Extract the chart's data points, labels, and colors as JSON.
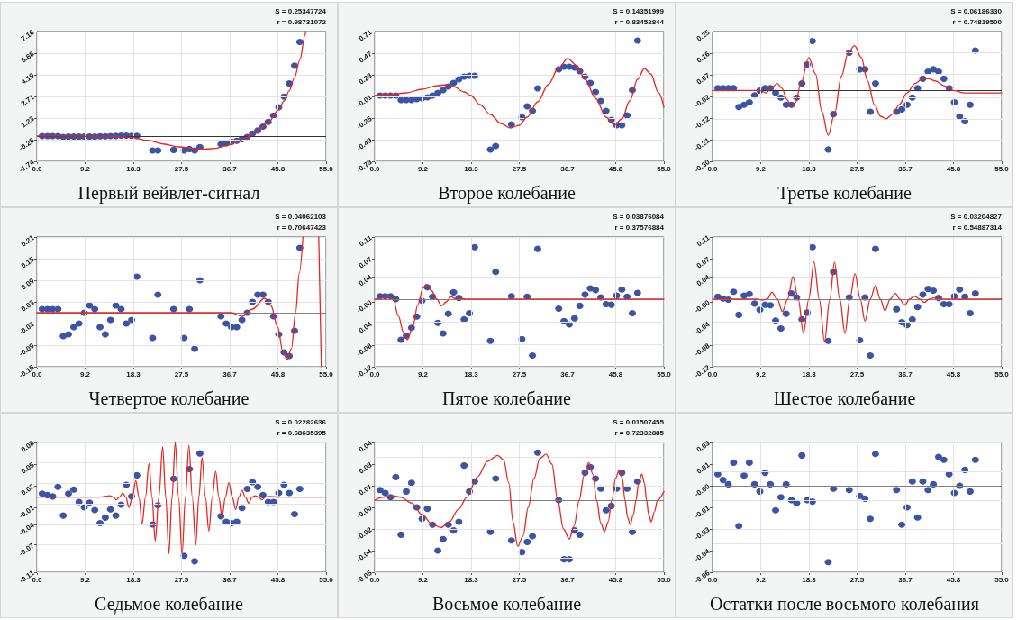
{
  "chart_data": [
    {
      "type": "scatter",
      "title": "Первый вейвлет-сигнал",
      "annotations": [
        "S = 0.25347724",
        "r = 0.98731072"
      ],
      "marker": "circle",
      "grid": true,
      "xlim": [
        0,
        55
      ],
      "xticks": [
        {
          "value": 0,
          "label": "0.0"
        },
        {
          "value": 9.1667,
          "label": "9.2"
        },
        {
          "value": 18.3333,
          "label": "18.3"
        },
        {
          "value": 27.5,
          "label": "27.5"
        },
        {
          "value": 36.6667,
          "label": "36.7"
        },
        {
          "value": 45.8333,
          "label": "45.8"
        },
        {
          "value": 55,
          "label": "55.0"
        }
      ],
      "ylim": [
        -1.74,
        7.16
      ],
      "yticks": [
        -1.74,
        {
          "value": -0.2567,
          "label": "-0.26"
        },
        {
          "value": 1.2267,
          "label": "1.23"
        },
        2.71,
        {
          "value": 4.1933,
          "label": "4.19"
        },
        {
          "value": 5.6767,
          "label": "5.68"
        },
        7.16
      ],
      "ref_lines": [
        {
          "axis": "y",
          "value": 0,
          "color": "#333333"
        }
      ],
      "series": [
        {
          "color": "#3b54a5",
          "x": [
            1,
            2,
            3,
            4,
            5,
            6,
            7,
            8,
            9,
            10,
            11,
            12,
            13,
            14,
            15,
            16,
            17,
            18,
            19,
            22,
            23,
            26,
            28,
            29,
            30,
            31,
            35,
            36,
            37,
            38,
            39,
            40,
            41,
            42,
            43,
            44,
            45,
            46,
            47,
            48,
            49,
            50
          ],
          "values": [
            -0.01,
            -0.01,
            -0.01,
            -0.01,
            -0.07,
            -0.05,
            -0.05,
            -0.05,
            -0.05,
            -0.05,
            -0.05,
            -0.03,
            -0.02,
            -0.01,
            0.0,
            0.02,
            0.02,
            0.01,
            0.0,
            -1.0,
            -1.0,
            -0.96,
            -1.0,
            -0.9,
            -1.0,
            -0.77,
            -0.56,
            -0.5,
            -0.41,
            -0.33,
            -0.22,
            -0.07,
            0.16,
            0.37,
            0.64,
            0.96,
            1.4,
            1.97,
            2.69,
            3.6,
            4.82,
            6.45
          ]
        },
        {
          "type": "line",
          "marker": "none",
          "color": "#e8251f",
          "x": [
            0,
            15,
            18,
            21,
            24,
            27,
            30,
            32,
            34,
            36,
            38,
            40,
            42,
            44,
            46,
            47,
            48,
            49,
            50,
            51,
            51.1
          ],
          "values": [
            0,
            -0.03,
            -0.1,
            -0.3,
            -0.55,
            -0.75,
            -0.87,
            -0.9,
            -0.85,
            -0.68,
            -0.4,
            -0.08,
            0.35,
            0.95,
            1.8,
            2.4,
            3.1,
            4.0,
            5.2,
            6.9,
            7.16
          ]
        }
      ]
    },
    {
      "type": "scatter",
      "title": "Второе колебание",
      "annotations": [
        "S = 0.14351999",
        "r = 0.83452844"
      ],
      "marker": "circle",
      "grid": true,
      "xlim": [
        0,
        55
      ],
      "xticks": [
        {
          "value": 0,
          "label": "0.0"
        },
        {
          "value": 9.1667,
          "label": "9.2"
        },
        {
          "value": 18.3333,
          "label": "18.3"
        },
        {
          "value": 27.5,
          "label": "27.5"
        },
        {
          "value": 36.6667,
          "label": "36.7"
        },
        {
          "value": 45.8333,
          "label": "45.8"
        },
        {
          "value": 55,
          "label": "55.0"
        }
      ],
      "ylim": [
        -0.73,
        0.71
      ],
      "yticks": [
        -0.73,
        -0.49,
        -0.25,
        -0.01,
        0.23,
        0.47,
        0.71
      ],
      "ref_lines": [
        {
          "axis": "y",
          "value": 0,
          "color": "#333333"
        }
      ],
      "series": [
        {
          "color": "#3b54a5",
          "x": [
            1,
            2,
            3,
            4,
            5,
            6,
            7,
            8,
            9,
            10,
            11,
            12,
            13,
            14,
            15,
            16,
            17,
            18,
            19,
            22,
            23,
            26,
            28,
            29,
            30,
            31,
            35,
            36,
            37,
            38,
            39,
            40,
            41,
            42,
            43,
            44,
            45,
            46,
            47,
            48,
            49,
            50
          ],
          "values": [
            0.0,
            0.0,
            0.0,
            0.0,
            -0.05,
            -0.05,
            -0.05,
            -0.04,
            -0.03,
            -0.02,
            0.0,
            0.03,
            0.06,
            0.1,
            0.14,
            0.18,
            0.21,
            0.22,
            0.22,
            -0.6,
            -0.56,
            -0.32,
            -0.24,
            -0.12,
            -0.17,
            0.08,
            0.29,
            0.32,
            0.32,
            0.31,
            0.27,
            0.21,
            0.14,
            0.04,
            -0.06,
            -0.17,
            -0.27,
            -0.33,
            -0.33,
            -0.22,
            0.06,
            0.61
          ]
        },
        {
          "type": "line",
          "marker": "none",
          "color": "#e8251f",
          "x": [
            0,
            3,
            6,
            9,
            12,
            13.5,
            15,
            17,
            18.3,
            20,
            22,
            24,
            25.8,
            27.5,
            29,
            31,
            33,
            35,
            36.7,
            38.5,
            40,
            42,
            44,
            45.6,
            47,
            48.5,
            50,
            51.3,
            52.5,
            54,
            55
          ],
          "values": [
            0,
            0.01,
            0.03,
            0.07,
            0.11,
            0.12,
            0.1,
            0.04,
            0.0,
            -0.1,
            -0.21,
            -0.31,
            -0.36,
            -0.33,
            -0.24,
            -0.07,
            0.12,
            0.31,
            0.41,
            0.33,
            0.18,
            -0.03,
            -0.24,
            -0.33,
            -0.26,
            -0.06,
            0.18,
            0.3,
            0.24,
            0.03,
            -0.13
          ]
        }
      ]
    },
    {
      "type": "scatter",
      "title": "Третье колебание",
      "annotations": [
        "S = 0.06186330",
        "r = 0.74819500"
      ],
      "marker": "circle",
      "grid": true,
      "xlim": [
        0,
        55
      ],
      "xticks": [
        {
          "value": 0,
          "label": "0.0"
        },
        {
          "value": 9.1667,
          "label": "9.2"
        },
        {
          "value": 18.3333,
          "label": "18.3"
        },
        {
          "value": 27.5,
          "label": "27.5"
        },
        {
          "value": 36.6667,
          "label": "36.7"
        },
        {
          "value": 45.8333,
          "label": "45.8"
        },
        {
          "value": 55,
          "label": "55.0"
        }
      ],
      "ylim": [
        -0.3,
        0.25
      ],
      "yticks": [
        {
          "value": -0.3,
          "label": "-0.30"
        },
        {
          "value": -0.2083,
          "label": "-0.21"
        },
        {
          "value": -0.1167,
          "label": "-0.12"
        },
        {
          "value": -0.025,
          "label": "-0.02"
        },
        {
          "value": 0.0667,
          "label": "0.07"
        },
        {
          "value": 0.1583,
          "label": "0.16"
        },
        0.25
      ],
      "ref_lines": [
        {
          "axis": "y",
          "value": 0,
          "color": "#333333"
        }
      ],
      "series": [
        {
          "color": "#3b54a5",
          "x": [
            1,
            2,
            3,
            4,
            5,
            6,
            7,
            8,
            9,
            10,
            11,
            12,
            13,
            14,
            15,
            16,
            17,
            18,
            19,
            22,
            23,
            26,
            28,
            29,
            30,
            31,
            35,
            36,
            37,
            38,
            39,
            40,
            41,
            42,
            43,
            44,
            45,
            46,
            47,
            48,
            49,
            50
          ],
          "values": [
            0.01,
            0.01,
            0.01,
            0.01,
            -0.07,
            -0.06,
            -0.05,
            -0.02,
            0.0,
            0.01,
            0.01,
            -0.01,
            -0.03,
            -0.06,
            -0.06,
            -0.03,
            0.03,
            0.11,
            0.21,
            -0.25,
            -0.1,
            0.16,
            0.09,
            0.09,
            -0.09,
            0.03,
            -0.09,
            -0.08,
            -0.06,
            -0.03,
            0.01,
            0.05,
            0.08,
            0.09,
            0.08,
            0.05,
            0.01,
            -0.05,
            -0.11,
            -0.13,
            -0.06,
            0.17
          ]
        },
        {
          "type": "line",
          "marker": "none",
          "color": "#e8251f",
          "x": [
            0,
            6.5,
            8,
            9,
            10.2,
            11.2,
            12.3,
            13.2,
            14.2,
            15,
            15.8,
            16.8,
            18.3,
            19.6,
            20.8,
            22,
            23.2,
            24.5,
            25.8,
            27,
            28.3,
            29.5,
            30.8,
            32,
            33,
            34.3,
            35.5,
            37,
            38.5,
            40,
            41,
            42.5,
            44,
            45.8,
            48,
            52,
            55
          ],
          "values": [
            0,
            0,
            0,
            0,
            -0.01,
            0.01,
            0.03,
            0.01,
            -0.04,
            -0.07,
            -0.05,
            0.03,
            0.14,
            0.07,
            -0.09,
            -0.19,
            -0.1,
            0.06,
            0.16,
            0.19,
            0.14,
            0.04,
            -0.06,
            -0.11,
            -0.12,
            -0.1,
            -0.06,
            -0.01,
            0.03,
            0.05,
            0.05,
            0.04,
            0.02,
            0.0,
            -0.01,
            -0.01,
            -0.01
          ]
        }
      ]
    },
    {
      "type": "scatter",
      "title": "Четвертое колебание",
      "annotations": [
        "S = 0.04062103",
        "r = 0.70647423"
      ],
      "marker": "circle",
      "grid": true,
      "xlim": [
        0,
        55
      ],
      "xticks": [
        {
          "value": 0,
          "label": "0.0"
        },
        {
          "value": 9.1667,
          "label": "9.2"
        },
        {
          "value": 18.3333,
          "label": "18.3"
        },
        {
          "value": 27.5,
          "label": "27.5"
        },
        {
          "value": 36.6667,
          "label": "36.7"
        },
        {
          "value": 45.8333,
          "label": "45.8"
        },
        {
          "value": 55,
          "label": "55.0"
        }
      ],
      "ylim": [
        -0.15,
        0.21
      ],
      "yticks": [
        -0.15,
        -0.09,
        -0.03,
        0.03,
        0.09,
        0.15,
        0.21
      ],
      "ref_lines": [
        {
          "axis": "y",
          "value": 0,
          "color": "#808080"
        }
      ],
      "series": [
        {
          "color": "#3b54a5",
          "x": [
            1,
            2,
            3,
            4,
            5,
            6,
            7,
            8,
            9,
            10,
            11,
            12,
            13,
            14,
            15,
            16,
            17,
            18,
            19,
            22,
            23,
            26,
            28,
            29,
            30,
            31,
            35,
            36,
            37,
            38,
            39,
            40,
            41,
            42,
            43,
            44,
            45,
            46,
            47,
            48,
            49,
            50
          ],
          "values": [
            0.01,
            0.01,
            0.01,
            0.01,
            -0.065,
            -0.06,
            -0.04,
            -0.03,
            0.0,
            0.02,
            0.01,
            -0.04,
            -0.06,
            -0.02,
            0.02,
            0.01,
            -0.03,
            -0.02,
            0.1,
            -0.07,
            0.05,
            0.01,
            -0.07,
            0.01,
            -0.1,
            0.09,
            -0.01,
            -0.03,
            -0.04,
            -0.04,
            -0.02,
            0.0,
            0.03,
            0.05,
            0.05,
            0.03,
            -0.01,
            -0.06,
            -0.11,
            -0.12,
            -0.05,
            0.18
          ]
        },
        {
          "type": "line",
          "marker": "none",
          "color": "#e8251f",
          "x": [
            0,
            10,
            20,
            30,
            33,
            35,
            37,
            39,
            41,
            43.3,
            44.5,
            45.8,
            46.8,
            47.6,
            48.4,
            49.2,
            49.9,
            50.6,
            52,
            53.6,
            54.1
          ],
          "values": [
            0,
            0,
            0,
            0,
            0,
            0.0,
            0,
            -0.01,
            0.01,
            0.04,
            0.02,
            -0.04,
            -0.11,
            -0.13,
            -0.1,
            0.0,
            0.11,
            0.21,
            null,
            0.21,
            -0.15
          ]
        }
      ]
    },
    {
      "type": "scatter",
      "title": "Пятое колебание",
      "annotations": [
        "S = 0.03876084",
        "r = 0.37576884"
      ],
      "marker": "circle",
      "grid": true,
      "xlim": [
        0,
        55
      ],
      "xticks": [
        {
          "value": 0,
          "label": "0.0"
        },
        {
          "value": 9.1667,
          "label": "9.2"
        },
        {
          "value": 18.3333,
          "label": "18.3"
        },
        {
          "value": 27.5,
          "label": "27.5"
        },
        {
          "value": 36.6667,
          "label": "36.7"
        },
        {
          "value": 45.8333,
          "label": "45.8"
        },
        {
          "value": 55,
          "label": "55.0"
        }
      ],
      "ylim": [
        -0.12,
        0.11
      ],
      "yticks": [
        -0.12,
        {
          "value": -0.0817,
          "label": "-0.08"
        },
        {
          "value": -0.0433,
          "label": "-0.04"
        },
        {
          "value": -0.005,
          "label": "-0.00"
        },
        0.04,
        {
          "value": 0.0717,
          "label": "0.07"
        },
        0.11
      ],
      "ref_lines": [
        {
          "axis": "y",
          "value": 0,
          "color": "#808080"
        }
      ],
      "series": [
        {
          "color": "#3b54a5",
          "x": [
            1,
            2,
            3,
            4,
            5,
            6,
            7,
            8,
            9,
            10,
            11,
            12,
            13,
            14,
            15,
            16,
            17,
            18,
            19,
            22,
            23,
            26,
            28,
            29,
            30,
            31,
            35,
            36,
            37,
            38,
            39,
            40,
            41,
            42,
            43,
            44,
            45,
            46,
            47,
            48,
            49,
            50
          ],
          "values": [
            0.005,
            0.005,
            0.005,
            0.0,
            -0.072,
            -0.065,
            -0.051,
            -0.031,
            -0.003,
            0.021,
            0.004,
            -0.042,
            -0.061,
            -0.026,
            0.012,
            0.002,
            -0.036,
            -0.025,
            0.092,
            -0.074,
            0.048,
            0.005,
            -0.071,
            0.004,
            -0.1,
            0.089,
            -0.017,
            -0.039,
            -0.045,
            -0.034,
            -0.012,
            0.008,
            0.019,
            0.016,
            0.003,
            -0.009,
            -0.01,
            0.006,
            0.017,
            0.004,
            -0.025,
            0.011
          ]
        },
        {
          "type": "line",
          "marker": "none",
          "color": "#e8251f",
          "x": [
            0,
            1.5,
            2.5,
            3.5,
            4.5,
            5.5,
            6.2,
            7.2,
            8.2,
            9.2,
            9.8,
            10.8,
            11.8,
            12.7,
            13.6,
            14.5,
            15.5,
            16.5,
            17.5,
            20,
            30,
            40,
            55
          ],
          "values": [
            0,
            0.002,
            0.005,
            0.0,
            -0.03,
            -0.06,
            -0.072,
            -0.05,
            -0.01,
            0.02,
            0.026,
            0.015,
            0.0,
            -0.012,
            -0.005,
            0.004,
            0.0,
            0.001,
            0.0,
            0,
            0,
            0,
            0
          ]
        }
      ]
    },
    {
      "type": "scatter",
      "title": "Шестое колебание",
      "annotations": [
        "S = 0.03204827",
        "r = 0.54887314"
      ],
      "marker": "circle",
      "grid": true,
      "xlim": [
        0,
        55
      ],
      "xticks": [
        {
          "value": 0,
          "label": "0.0"
        },
        {
          "value": 9.1667,
          "label": "9.2"
        },
        {
          "value": 18.3333,
          "label": "18.3"
        },
        {
          "value": 27.5,
          "label": "27.5"
        },
        {
          "value": 36.6667,
          "label": "36.7"
        },
        {
          "value": 45.8333,
          "label": "45.8"
        },
        {
          "value": 55,
          "label": "55.0"
        }
      ],
      "ylim": [
        -0.12,
        0.11
      ],
      "yticks": [
        -0.12,
        {
          "value": -0.0817,
          "label": "-0.08"
        },
        {
          "value": -0.0433,
          "label": "-0.04"
        },
        {
          "value": -0.005,
          "label": "-0.00"
        },
        0.04,
        {
          "value": 0.0717,
          "label": "0.07"
        },
        0.11
      ],
      "ref_lines": [
        {
          "axis": "y",
          "value": 0,
          "color": "#808080"
        }
      ],
      "series": [
        {
          "color": "#3b54a5",
          "x": [
            1,
            2,
            3,
            4,
            5,
            6,
            7,
            8,
            9,
            10,
            11,
            12,
            13,
            14,
            15,
            16,
            17,
            18,
            19,
            22,
            23,
            26,
            28,
            29,
            30,
            31,
            35,
            36,
            37,
            38,
            39,
            40,
            41,
            42,
            43,
            44,
            45,
            46,
            47,
            48,
            49,
            50
          ],
          "values": [
            0.004,
            0.001,
            -0.001,
            0.013,
            -0.028,
            0.006,
            0.009,
            -0.008,
            -0.019,
            -0.01,
            -0.011,
            -0.038,
            -0.052,
            -0.026,
            0.01,
            0.003,
            -0.036,
            -0.024,
            0.092,
            -0.074,
            0.048,
            0.003,
            -0.073,
            0.003,
            -0.1,
            0.089,
            -0.018,
            -0.041,
            -0.046,
            -0.036,
            -0.014,
            0.008,
            0.018,
            0.015,
            0.002,
            -0.009,
            -0.009,
            0.005,
            0.017,
            0.004,
            -0.025,
            0.01
          ]
        },
        {
          "type": "line",
          "marker": "none",
          "color": "#e8251f",
          "x": [
            0,
            7,
            8.5,
            9.5,
            10.4,
            11.3,
            12.3,
            13.3,
            14.3,
            15.3,
            16.3,
            17.3,
            18.3,
            19.3,
            20.3,
            21.3,
            22.3,
            23.2,
            24.2,
            25.2,
            26.1,
            27.1,
            28.1,
            29,
            30,
            31,
            31.9,
            32.8,
            33.8,
            34.8,
            35.6,
            36.5,
            37.5,
            38.4,
            39.4,
            40.3,
            41.2,
            42,
            44,
            55
          ],
          "values": [
            0,
            0,
            0,
            -0.002,
            0.0,
            0.012,
            0.0,
            -0.022,
            0.0,
            0.04,
            0.0,
            -0.061,
            0.0,
            0.066,
            0.0,
            -0.075,
            0.0,
            0.065,
            0.0,
            -0.061,
            0.0,
            0.045,
            0.0,
            -0.039,
            0.0,
            0.024,
            0.0,
            -0.021,
            0.0,
            0.01,
            0.0,
            -0.011,
            0.0,
            0.005,
            0.0,
            -0.006,
            0.0,
            0.002,
            0,
            0
          ]
        }
      ]
    },
    {
      "type": "scatter",
      "title": "Седьмое колебание",
      "annotations": [
        "S = 0.02282636",
        "r = 0.68635395"
      ],
      "marker": "circle",
      "grid": true,
      "xlim": [
        0,
        55
      ],
      "xticks": [
        {
          "value": 0,
          "label": "0.0"
        },
        {
          "value": 9.1667,
          "label": "9.2"
        },
        {
          "value": 18.3333,
          "label": "18.3"
        },
        {
          "value": 27.5,
          "label": "27.5"
        },
        {
          "value": 36.6667,
          "label": "36.7"
        },
        {
          "value": 45.8333,
          "label": "45.8"
        },
        {
          "value": 55,
          "label": "55.0"
        }
      ],
      "ylim": [
        -0.11,
        0.08
      ],
      "yticks": [
        -0.11,
        -0.07,
        -0.04,
        {
          "value": -0.015,
          "label": "-0.01"
        },
        {
          "value": 0.0167,
          "label": "0.02"
        },
        {
          "value": 0.0483,
          "label": "0.05"
        },
        0.08
      ],
      "ref_lines": [
        {
          "axis": "y",
          "value": 0,
          "color": "#808080"
        }
      ],
      "series": [
        {
          "color": "#3b54a5",
          "x": [
            1,
            2,
            3,
            4,
            5,
            6,
            7,
            8,
            9,
            10,
            11,
            12,
            13,
            14,
            15,
            16,
            17,
            18,
            19,
            22,
            23,
            26,
            28,
            29,
            30,
            31,
            35,
            36,
            37,
            38,
            39,
            40,
            41,
            42,
            43,
            44,
            45,
            46,
            47,
            48,
            49,
            50
          ],
          "values": [
            0.005,
            0.003,
            0.001,
            0.015,
            -0.027,
            0.005,
            0.011,
            -0.007,
            -0.015,
            -0.008,
            -0.019,
            -0.038,
            -0.03,
            -0.018,
            -0.027,
            -0.011,
            0.018,
            0.001,
            0.032,
            -0.04,
            -0.012,
            0.027,
            -0.086,
            0.041,
            -0.094,
            0.064,
            -0.028,
            -0.036,
            -0.038,
            -0.036,
            -0.016,
            0.012,
            0.022,
            0.015,
            0.003,
            -0.007,
            -0.007,
            0.006,
            0.018,
            0.006,
            -0.025,
            0.012
          ]
        },
        {
          "type": "line",
          "marker": "none",
          "color": "#e8251f",
          "x": [
            0,
            12,
            13.9,
            14.5,
            15.1,
            15.7,
            16.3,
            16.9,
            17.5,
            18.15,
            18.8,
            19.4,
            20,
            20.65,
            21.3,
            21.9,
            22.5,
            23.2,
            23.9,
            24.5,
            25.1,
            25.7,
            26.3,
            26.95,
            27.6,
            28.25,
            28.9,
            29.55,
            30.2,
            30.8,
            31.4,
            32.05,
            32.7,
            33.35,
            34,
            34.6,
            35.2,
            35.85,
            36.5,
            37.15,
            37.8,
            38.4,
            39,
            39.65,
            40.3,
            40.9,
            41.5,
            42.15,
            42.8,
            43.45,
            44.1,
            46,
            55
          ],
          "values": [
            0,
            0,
            0.002,
            0,
            -0.004,
            0,
            0.006,
            0,
            -0.015,
            0,
            0.024,
            0,
            -0.039,
            0,
            0.049,
            0,
            -0.064,
            0,
            0.074,
            0,
            -0.083,
            0,
            0.08,
            0,
            -0.084,
            0,
            0.076,
            0,
            -0.07,
            0,
            0.058,
            0,
            -0.05,
            0,
            0.038,
            0,
            -0.029,
            0,
            0.021,
            0,
            -0.018,
            0,
            0.01,
            0,
            -0.009,
            0,
            0.002,
            0,
            -0.004,
            0,
            0.001,
            0,
            0
          ]
        }
      ]
    },
    {
      "type": "scatter",
      "title": "Восьмое колебание",
      "annotations": [
        "S = 0.01507455",
        "r = 0.72332885"
      ],
      "marker": "circle",
      "grid": true,
      "xlim": [
        0,
        55
      ],
      "xticks": [
        {
          "value": 0,
          "label": "0.0"
        },
        {
          "value": 9.1667,
          "label": "9.2"
        },
        {
          "value": 18.3333,
          "label": "18.3"
        },
        {
          "value": 27.5,
          "label": "27.5"
        },
        {
          "value": 36.6667,
          "label": "36.7"
        },
        {
          "value": 45.8333,
          "label": "45.8"
        },
        {
          "value": 55,
          "label": "55.0"
        }
      ],
      "ylim": [
        -0.05,
        0.04
      ],
      "yticks": [
        -0.05,
        {
          "value": -0.035,
          "label": "-0.04"
        },
        -0.02,
        {
          "value": -0.005,
          "label": "-0.00"
        },
        0.01,
        {
          "value": 0.025,
          "label": "0.03"
        },
        0.04
      ],
      "ref_lines": [
        {
          "axis": "y",
          "value": 0,
          "color": "#808080"
        }
      ],
      "series": [
        {
          "color": "#3b54a5",
          "x": [
            1,
            2,
            3,
            4,
            5,
            6,
            7,
            8,
            9,
            10,
            11,
            12,
            13,
            14,
            15,
            16,
            17,
            18,
            19,
            22,
            23,
            26,
            28,
            29,
            30,
            31,
            35,
            36,
            37,
            38,
            39,
            40,
            41,
            42,
            43,
            44,
            45,
            46,
            47,
            48,
            49,
            50
          ],
          "values": [
            0.007,
            0.005,
            0.002,
            0.016,
            -0.024,
            0.006,
            0.012,
            -0.005,
            -0.013,
            -0.006,
            -0.017,
            -0.035,
            -0.027,
            -0.017,
            -0.021,
            -0.015,
            0.024,
            0.006,
            0.013,
            -0.022,
            0.015,
            -0.028,
            -0.036,
            -0.029,
            -0.025,
            0.033,
            0.0,
            -0.041,
            -0.041,
            -0.021,
            -0.024,
            0.019,
            0.023,
            0.015,
            0.008,
            -0.007,
            -0.004,
            0.008,
            0.019,
            0.008,
            -0.022,
            0.013
          ]
        },
        {
          "type": "line",
          "marker": "none",
          "color": "#e8251f",
          "x": [
            0,
            1.5,
            3.4,
            5,
            7,
            9,
            11,
            12.6,
            14.2,
            16,
            17.5,
            19.5,
            21.5,
            23.4,
            24.5,
            25.5,
            26.3,
            27.2,
            28.2,
            29.2,
            30.3,
            31.4,
            32.6,
            33.7,
            34.8,
            35.9,
            37,
            37.9,
            38.9,
            39.8,
            40.7,
            41.5,
            42.2,
            43,
            43.7,
            44.4,
            45.1,
            45.8,
            46.5,
            47.1,
            47.6,
            48.1,
            48.6,
            49.2,
            49.7,
            50.2,
            50.8,
            51.3,
            51.7,
            52.1,
            52.6,
            53.2,
            53.8,
            55
          ],
          "values": [
            0,
            0.002,
            0.003,
            0.002,
            -0.002,
            -0.01,
            -0.017,
            -0.019,
            -0.015,
            -0.006,
            0.002,
            0.016,
            0.027,
            0.031,
            0.028,
            0.012,
            -0.015,
            -0.032,
            -0.025,
            -0.005,
            0.015,
            0.029,
            0.032,
            0.025,
            0.0,
            -0.02,
            -0.027,
            -0.018,
            0.0,
            0.017,
            0.026,
            0.018,
            0.0,
            -0.016,
            -0.022,
            -0.015,
            0.0,
            0.015,
            0.021,
            0.015,
            0.0,
            -0.012,
            -0.017,
            -0.01,
            0.0,
            0.012,
            0.018,
            0.012,
            0.0,
            -0.01,
            -0.015,
            -0.008,
            0.0,
            0.006
          ]
        }
      ]
    },
    {
      "type": "scatter",
      "title": "Остатки после восьмого колебания",
      "marker": "circle",
      "grid": true,
      "xlim": [
        0,
        55
      ],
      "xticks": [
        {
          "value": 0,
          "label": "0.0"
        },
        {
          "value": 9.1667,
          "label": "9.2"
        },
        {
          "value": 18.3333,
          "label": "18.3"
        },
        {
          "value": 27.5,
          "label": "27.5"
        },
        {
          "value": 36.6667,
          "label": "36.7"
        },
        {
          "value": 45.8333,
          "label": "45.8"
        },
        {
          "value": 55,
          "label": "55.0"
        }
      ],
      "ylim": [
        -0.06,
        0.03
      ],
      "yticks": [
        -0.06,
        {
          "value": -0.045,
          "label": "-0.04"
        },
        -0.03,
        {
          "value": -0.015,
          "label": "-0.01"
        },
        {
          "value": 0,
          "label": "-0.00"
        },
        {
          "value": 0.015,
          "label": "0.01"
        },
        0.03
      ],
      "ref_lines": [
        {
          "axis": "y",
          "value": 0,
          "color": "#808080"
        }
      ],
      "series": [
        {
          "color": "#3b54a5",
          "x": [
            1,
            2,
            3,
            4,
            5,
            6,
            7,
            8,
            9,
            10,
            11,
            12,
            13,
            14,
            15,
            16,
            17,
            18,
            19,
            22,
            23,
            26,
            28,
            29,
            30,
            31,
            35,
            36,
            37,
            38,
            39,
            40,
            41,
            42,
            43,
            44,
            45,
            46,
            47,
            48,
            49,
            50
          ],
          "values": [
            0.008,
            0.004,
            0.001,
            0.016,
            -0.028,
            0.007,
            0.016,
            0.001,
            -0.004,
            0.009,
            0.001,
            -0.017,
            -0.008,
            0.001,
            -0.01,
            -0.012,
            0.021,
            -0.01,
            -0.011,
            -0.053,
            -0.002,
            -0.003,
            -0.007,
            -0.009,
            -0.023,
            0.022,
            -0.003,
            -0.027,
            -0.015,
            0.003,
            -0.022,
            0.003,
            -0.003,
            0.001,
            0.02,
            0.018,
            0.008,
            -0.005,
            0.0,
            0.011,
            -0.004,
            0.018
          ]
        }
      ]
    }
  ]
}
